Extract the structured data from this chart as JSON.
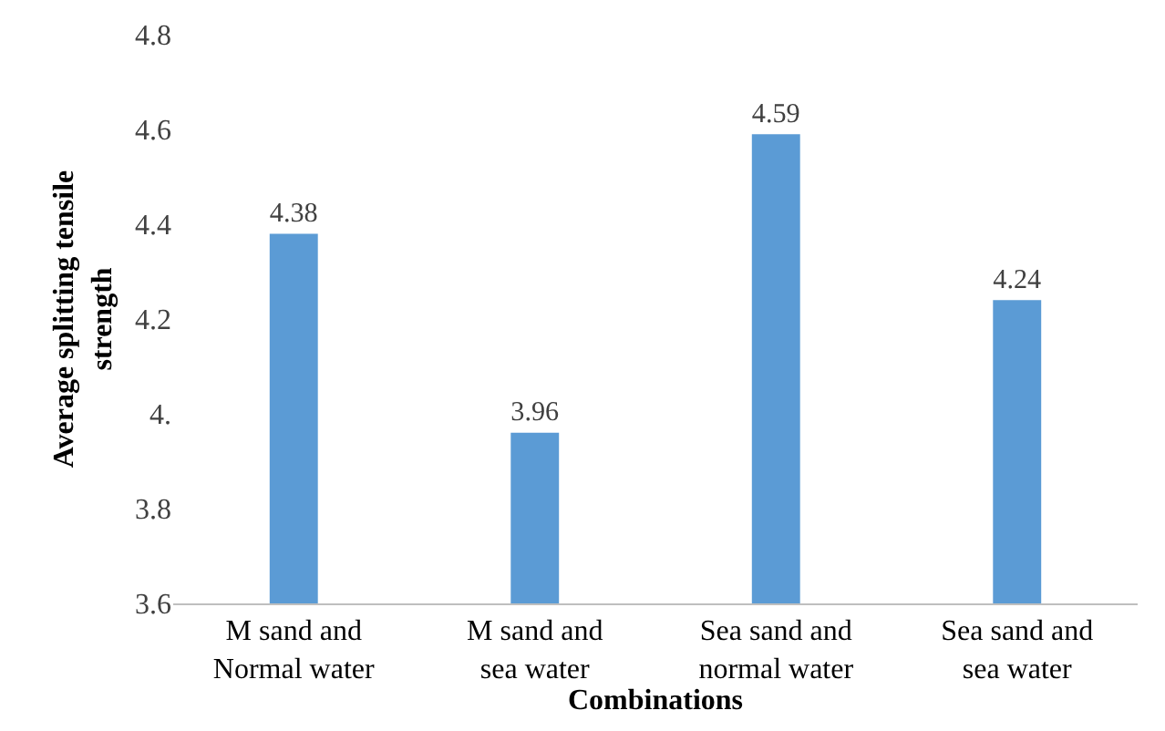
{
  "chart_data": {
    "type": "bar",
    "xlabel": "Combinations",
    "ylabel": "Average splitting tensile strength",
    "categories": [
      "M sand and Normal water",
      "M sand and sea water",
      "Sea sand and normal water",
      "Sea sand and sea water"
    ],
    "values": [
      4.38,
      3.96,
      4.59,
      4.24
    ],
    "color": "#5b9bd5",
    "data_labels": true,
    "ylim": [
      3.6,
      4.8
    ],
    "yticks": [
      3.6,
      3.8,
      {
        "value": 4,
        "label": "4."
      },
      4.2,
      4.4,
      4.6,
      4.8
    ]
  }
}
